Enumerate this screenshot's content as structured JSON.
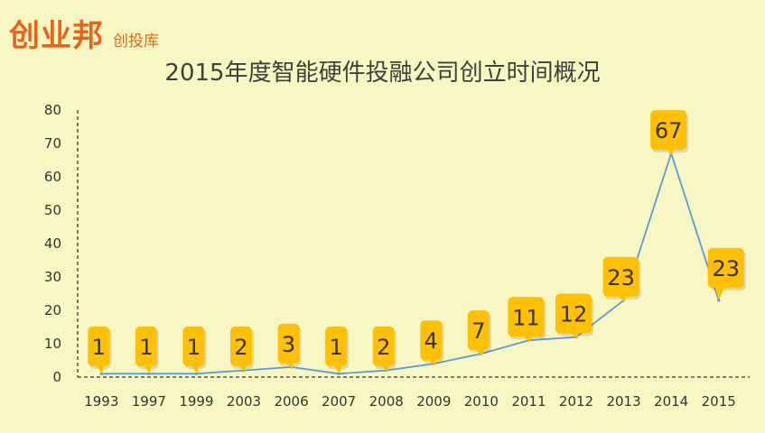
{
  "brand": {
    "logo": "创业邦",
    "sub": "创投库"
  },
  "chart_data": {
    "type": "line",
    "title": "2015年度智能硬件投融公司创立时间概况",
    "xlabel": "",
    "ylabel": "",
    "categories": [
      "1993",
      "1997",
      "1999",
      "2003",
      "2006",
      "2007",
      "2008",
      "2009",
      "2010",
      "2011",
      "2012",
      "2013",
      "2014",
      "2015"
    ],
    "values": [
      1,
      1,
      1,
      2,
      3,
      1,
      2,
      4,
      7,
      11,
      12,
      23,
      67,
      23
    ],
    "ylim": [
      0,
      80
    ],
    "yticks": [
      0,
      10,
      20,
      30,
      40,
      50,
      60,
      70,
      80
    ],
    "grid": false,
    "line_color": "#5b9bd5",
    "label_color": "#ffc000"
  }
}
